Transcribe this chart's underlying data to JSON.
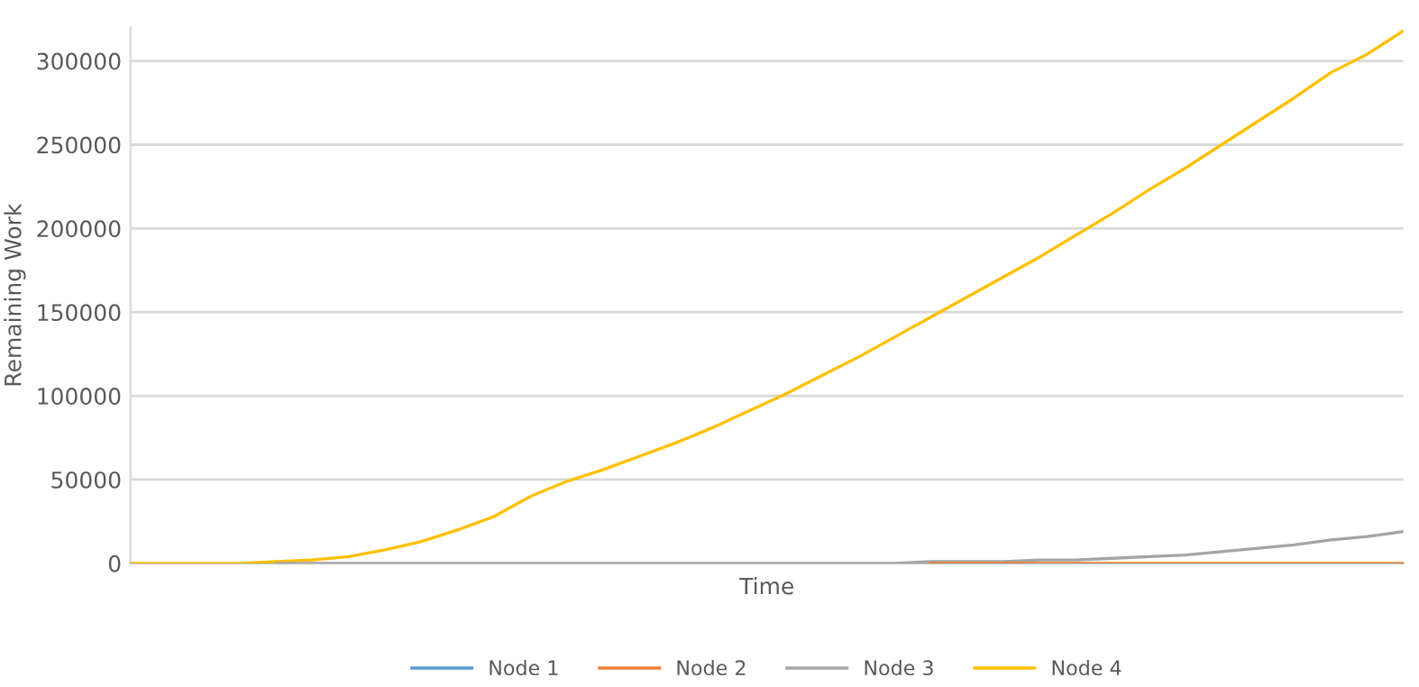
{
  "chart_data": {
    "type": "line",
    "xlabel": "Time",
    "ylabel": "Remaining Work",
    "categories": [
      null,
      null,
      null,
      null,
      null,
      null,
      null,
      null,
      null,
      null,
      null,
      null,
      null,
      null,
      null,
      null,
      null,
      null,
      null,
      null,
      null,
      null,
      null,
      null,
      null,
      null,
      null,
      null,
      null,
      null,
      null,
      null,
      null,
      null,
      null,
      null
    ],
    "series": [
      {
        "name": "Node 1",
        "color": "#5b9bd5",
        "values": [
          null,
          null,
          null,
          null,
          null,
          null,
          null,
          null,
          null,
          null,
          null,
          null,
          null,
          null,
          null,
          null,
          null,
          null,
          null,
          null,
          null,
          null,
          null,
          null,
          null,
          null,
          null,
          null,
          null,
          null,
          null,
          null,
          null,
          null,
          null,
          null
        ]
      },
      {
        "name": "Node 2",
        "color": "#ed7d31",
        "values": [
          null,
          null,
          null,
          null,
          null,
          null,
          null,
          null,
          null,
          null,
          null,
          null,
          null,
          null,
          null,
          null,
          null,
          null,
          null,
          null,
          null,
          null,
          0,
          0,
          0,
          0,
          0,
          0,
          0,
          0,
          0,
          0,
          0,
          0,
          0,
          0
        ]
      },
      {
        "name": "Node 3",
        "color": "#a5a5a5",
        "values": [
          null,
          null,
          null,
          null,
          0,
          0,
          0,
          0,
          0,
          0,
          0,
          0,
          0,
          0,
          0,
          0,
          0,
          0,
          0,
          0,
          0,
          0,
          1000,
          1000,
          1000,
          2000,
          2000,
          3000,
          4000,
          5000,
          7000,
          9000,
          11000,
          14000,
          16000,
          19000
        ]
      },
      {
        "name": "Node 4",
        "color": "#ffc000",
        "values": [
          0,
          0,
          0,
          0,
          1000,
          2000,
          4000,
          8000,
          13000,
          20000,
          28000,
          40000,
          49000,
          56000,
          64000,
          72000,
          81000,
          91000,
          101000,
          112000,
          123000,
          135000,
          147000,
          159000,
          171000,
          183000,
          196000,
          209000,
          223000,
          236000,
          250000,
          264000,
          278000,
          293000,
          304000,
          318000
        ]
      }
    ],
    "ylim": [
      0,
      320000
    ],
    "yticks": [
      0,
      50000,
      100000,
      150000,
      200000,
      250000,
      300000
    ],
    "grid": "y",
    "legend": "bottom",
    "marker": "none",
    "line_style": "solid"
  }
}
